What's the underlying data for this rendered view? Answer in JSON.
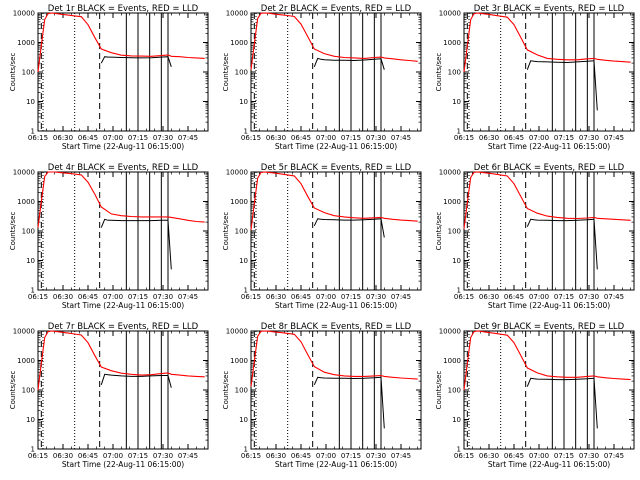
{
  "chart_data": {
    "type": "line",
    "panel_count": 9,
    "layout": "3x3 grid",
    "xlabel": "Start Time (22-Aug-11 06:15:00)",
    "ylabel": "Counts/sec",
    "x_unit": "minutes since 06:15",
    "xlim": [
      0,
      102
    ],
    "ylim": [
      1,
      10000
    ],
    "yscale": "log",
    "x_tick_labels": [
      "06:15",
      "06:30",
      "06:45",
      "07:00",
      "07:15",
      "07:30",
      "07:45"
    ],
    "x_tick_values": [
      0,
      15,
      30,
      45,
      60,
      75,
      90
    ],
    "y_tick_labels": [
      "1",
      "10",
      "100",
      "1000",
      "10000"
    ],
    "y_tick_values": [
      1,
      10,
      100,
      1000,
      10000
    ],
    "series_legend": {
      "events_color": "#000000",
      "lld_color": "#ff0000"
    },
    "dotted_lines_x": [
      3,
      22
    ],
    "dashed_lines_x": [
      2,
      37
    ],
    "solid_lines_x": [
      53,
      60,
      67,
      74,
      78
    ],
    "red_x": [
      0,
      2,
      4,
      6,
      8,
      10,
      14,
      18,
      22,
      26,
      30,
      34,
      38,
      44,
      50,
      56,
      62,
      68,
      74,
      78,
      80,
      85,
      90,
      95,
      100
    ],
    "black_x": [
      38,
      40,
      42,
      44,
      50,
      56,
      62,
      68,
      74,
      78,
      80
    ],
    "panels": [
      {
        "title": "Det 1r BLACK = Events, RED = LLD",
        "red": [
          100,
          800,
          6000,
          9500,
          10000,
          9800,
          9000,
          8500,
          8000,
          7500,
          4000,
          1500,
          600,
          450,
          370,
          350,
          345,
          340,
          360,
          380,
          340,
          330,
          310,
          300,
          290
        ],
        "black": [
          200,
          330,
          320,
          320,
          310,
          305,
          300,
          305,
          320,
          330,
          150
        ]
      },
      {
        "title": "Det 2r BLACK = Events, RED = LLD",
        "red": [
          120,
          900,
          6500,
          9800,
          10000,
          9900,
          9200,
          8700,
          8200,
          7600,
          4200,
          1600,
          600,
          420,
          340,
          310,
          300,
          290,
          310,
          320,
          300,
          280,
          260,
          245,
          230
        ],
        "black": [
          150,
          290,
          270,
          260,
          250,
          250,
          245,
          255,
          270,
          280,
          120
        ]
      },
      {
        "title": "Det 3r BLACK = Events, RED = LLD",
        "red": [
          100,
          750,
          6000,
          9500,
          10000,
          9700,
          9100,
          8400,
          7800,
          7200,
          4000,
          1500,
          560,
          380,
          290,
          270,
          260,
          260,
          280,
          290,
          270,
          250,
          235,
          225,
          215
        ],
        "black": [
          120,
          240,
          230,
          225,
          220,
          215,
          210,
          220,
          230,
          240,
          5
        ]
      },
      {
        "title": "Det 4r BLACK = Events, RED = LLD",
        "red": [
          130,
          1000,
          7000,
          10000,
          10000,
          10000,
          9500,
          9000,
          8500,
          8000,
          4500,
          1800,
          650,
          380,
          330,
          310,
          300,
          300,
          300,
          300,
          290,
          260,
          230,
          210,
          200
        ],
        "black": [
          130,
          250,
          230,
          230,
          225,
          225,
          225,
          225,
          230,
          230,
          5
        ]
      },
      {
        "title": "Det 5r BLACK = Events, RED = LLD",
        "red": [
          110,
          850,
          6200,
          9600,
          10000,
          9800,
          9200,
          8600,
          8000,
          7400,
          4000,
          1500,
          600,
          420,
          330,
          300,
          280,
          270,
          280,
          290,
          270,
          250,
          235,
          225,
          215
        ],
        "black": [
          150,
          260,
          250,
          245,
          240,
          235,
          235,
          240,
          250,
          260,
          60
        ]
      },
      {
        "title": "Det 6r BLACK = Events, RED = LLD",
        "red": [
          120,
          900,
          6500,
          9800,
          10000,
          9800,
          9200,
          8600,
          8000,
          7300,
          4000,
          1500,
          580,
          400,
          320,
          290,
          270,
          265,
          275,
          290,
          270,
          260,
          250,
          240,
          230
        ],
        "black": [
          140,
          250,
          240,
          235,
          230,
          225,
          225,
          230,
          240,
          250,
          5
        ]
      },
      {
        "title": "Det 7r BLACK = Events, RED = LLD",
        "red": [
          100,
          800,
          6000,
          9500,
          10000,
          9800,
          9100,
          8500,
          7900,
          7300,
          4000,
          1500,
          600,
          450,
          370,
          340,
          320,
          330,
          360,
          380,
          340,
          320,
          300,
          290,
          280
        ],
        "black": [
          150,
          340,
          330,
          320,
          300,
          290,
          290,
          300,
          310,
          310,
          120
        ]
      },
      {
        "title": "Det 8r BLACK = Events, RED = LLD",
        "red": [
          130,
          950,
          6600,
          9800,
          10000,
          9900,
          9300,
          8800,
          8300,
          7700,
          4300,
          1600,
          620,
          400,
          330,
          300,
          290,
          290,
          300,
          310,
          290,
          270,
          255,
          245,
          235
        ],
        "black": [
          150,
          270,
          260,
          255,
          250,
          250,
          245,
          250,
          260,
          270,
          5
        ]
      },
      {
        "title": "Det 9r BLACK = Events, RED = LLD",
        "red": [
          100,
          800,
          6000,
          9500,
          10000,
          9800,
          9000,
          8400,
          7800,
          7200,
          4000,
          1500,
          560,
          380,
          300,
          280,
          270,
          270,
          290,
          300,
          280,
          260,
          245,
          235,
          225
        ],
        "black": [
          130,
          250,
          240,
          235,
          230,
          225,
          225,
          230,
          240,
          250,
          5
        ]
      }
    ]
  }
}
